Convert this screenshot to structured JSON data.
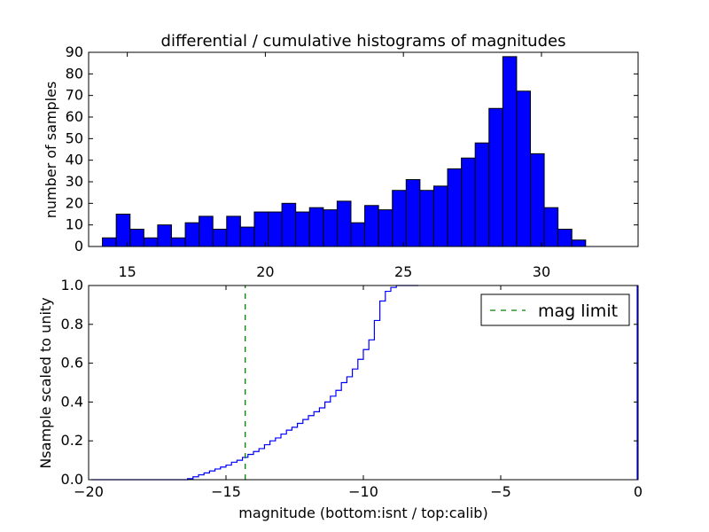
{
  "colors": {
    "bar_fill": "#0000ff",
    "bar_edge": "#000000",
    "cumulative_line": "#0000ff",
    "mag_limit_line": "#008000",
    "axes": "#000000",
    "background": "#ffffff"
  },
  "chart_data": [
    {
      "type": "bar",
      "title": "differential / cumulative histograms of magnitudes",
      "xlabel": "",
      "ylabel": "number of samples",
      "xlim": [
        13.6,
        33.5
      ],
      "ylim": [
        0,
        90
      ],
      "xticks": [
        15,
        20,
        25,
        30
      ],
      "yticks": [
        0,
        10,
        20,
        30,
        40,
        50,
        60,
        70,
        80,
        90
      ],
      "bin_width": 0.5,
      "bin_start": 14.1,
      "values": [
        4,
        15,
        8,
        4,
        10,
        4,
        11,
        14,
        8,
        14,
        9,
        16,
        16,
        20,
        16,
        18,
        17,
        21,
        11,
        19,
        17,
        26,
        31,
        26,
        28,
        36,
        41,
        48,
        64,
        88,
        72,
        43,
        18,
        8,
        3
      ],
      "grid": false
    },
    {
      "type": "line",
      "title": "",
      "xlabel": "magnitude (bottom:isnt / top:calib)",
      "ylabel": "Nsample scaled to unity",
      "xlim": [
        -20,
        0
      ],
      "ylim": [
        0,
        1.0
      ],
      "xticks": [
        -20,
        -15,
        -10,
        -5,
        0
      ],
      "xtick_labels": [
        "−20",
        "−15",
        "−10",
        "−5",
        "0"
      ],
      "yticks": [
        0.0,
        0.2,
        0.4,
        0.6,
        0.8,
        1.0
      ],
      "ytick_labels": [
        "0.0",
        "0.2",
        "0.4",
        "0.6",
        "0.8",
        "1.0"
      ],
      "grid": false,
      "legend": {
        "position": "top-right",
        "entries": [
          "mag limit"
        ]
      },
      "series": [
        {
          "name": "",
          "style": "step",
          "x": [
            -19.9,
            -16.4,
            -16.2,
            -16.0,
            -15.8,
            -15.6,
            -15.4,
            -15.2,
            -15.0,
            -14.8,
            -14.6,
            -14.4,
            -14.2,
            -14.0,
            -13.8,
            -13.6,
            -13.4,
            -13.2,
            -13.0,
            -12.8,
            -12.6,
            -12.4,
            -12.2,
            -12.0,
            -11.8,
            -11.6,
            -11.4,
            -11.2,
            -11.0,
            -10.8,
            -10.6,
            -10.4,
            -10.2,
            -10.0,
            -9.8,
            -9.6,
            -9.4,
            -9.2,
            -9.0,
            -8.8,
            -8.6,
            -8.4,
            -8.2,
            -8.0
          ],
          "y": [
            0.0,
            0.005,
            0.015,
            0.025,
            0.035,
            0.045,
            0.055,
            0.065,
            0.075,
            0.09,
            0.1,
            0.115,
            0.13,
            0.145,
            0.16,
            0.18,
            0.2,
            0.215,
            0.235,
            0.255,
            0.27,
            0.29,
            0.31,
            0.33,
            0.35,
            0.37,
            0.4,
            0.43,
            0.46,
            0.5,
            0.53,
            0.57,
            0.62,
            0.67,
            0.72,
            0.82,
            0.92,
            0.97,
            0.99,
            1.0,
            1.0,
            1.0,
            1.0,
            1.0
          ]
        },
        {
          "name": "mag limit",
          "style": "dashed-vertical",
          "x": [
            -14.3,
            -14.3
          ],
          "y": [
            0,
            1.0
          ]
        }
      ]
    }
  ]
}
